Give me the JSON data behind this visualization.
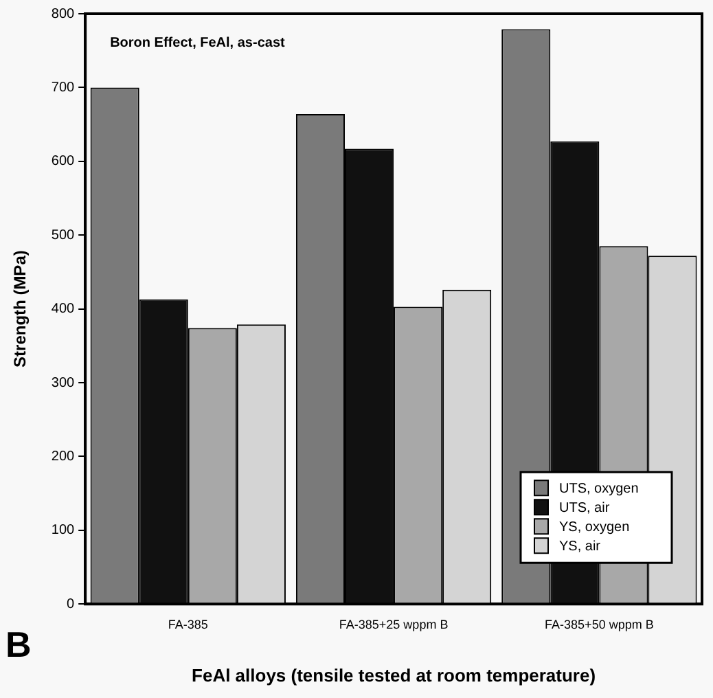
{
  "chart_data": {
    "type": "bar",
    "title": "Boron Effect, FeAl, as-cast",
    "xlabel": "FeAl alloys (tensile tested at room temperature)",
    "ylabel": "Strength (MPa)",
    "annotations": [
      "B"
    ],
    "categories": [
      "FA-385",
      "FA-385+25 wppm B",
      "FA-385+50 wppm B"
    ],
    "series": [
      {
        "name": "UTS, oxygen",
        "color": "#7a7a7a",
        "values": [
          700,
          664,
          779
        ]
      },
      {
        "name": "UTS, air",
        "color": "#111111",
        "values": [
          413,
          617,
          627
        ]
      },
      {
        "name": "YS, oxygen",
        "color": "#a8a8a8",
        "values": [
          374,
          403,
          485
        ]
      },
      {
        "name": "YS, air",
        "color": "#d4d4d4",
        "values": [
          379,
          426,
          472
        ]
      }
    ],
    "ylim": [
      0,
      800
    ],
    "yticks": [
      0,
      100,
      200,
      300,
      400,
      500,
      600,
      700,
      800
    ],
    "grid": false,
    "legend": "bottom right"
  }
}
